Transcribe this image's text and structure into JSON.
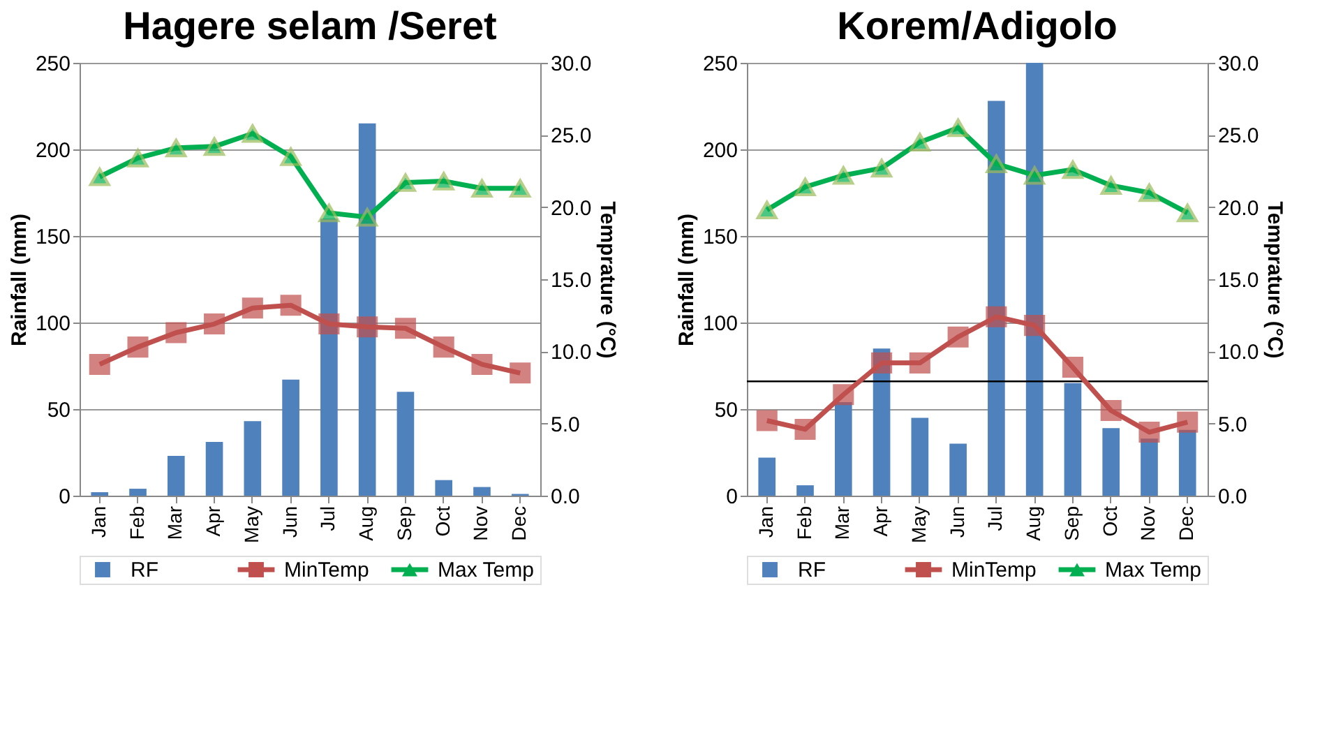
{
  "chart_data": [
    {
      "type": "bar",
      "title": "Hagere selam /Seret",
      "ylabel": "Rainfall (mm)",
      "y2label": "Temprature (°C)",
      "categories": [
        "Jan",
        "Feb",
        "Mar",
        "Apr",
        "May",
        "Jun",
        "Jul",
        "Aug",
        "Sep",
        "Oct",
        "Nov",
        "Dec"
      ],
      "series": [
        {
          "name": "RF",
          "color": "#4f81bd",
          "values": [
            2,
            4,
            23,
            31,
            43,
            67,
            160,
            215,
            60,
            9,
            5,
            1
          ]
        },
        {
          "name": "MinTemp",
          "type": "line",
          "axis": "y2",
          "marker": "square",
          "color": "#c0504d",
          "values": [
            9.1,
            10.3,
            11.3,
            11.9,
            13.0,
            13.2,
            11.9,
            11.7,
            11.6,
            10.3,
            9.1,
            8.5
          ]
        },
        {
          "name": "Max Temp",
          "type": "line",
          "axis": "y2",
          "marker": "triangle",
          "color": "#00b050",
          "values": [
            22.1,
            23.4,
            24.1,
            24.2,
            25.1,
            23.5,
            19.6,
            19.3,
            21.7,
            21.8,
            21.3,
            21.3
          ]
        }
      ],
      "ylim": [
        0,
        250
      ],
      "yticks": [
        0,
        50,
        100,
        150,
        200,
        250
      ],
      "y2lim": [
        0,
        30
      ],
      "y2ticks": [
        {
          "value": 0,
          "label": "0.0"
        },
        {
          "value": 5,
          "label": "5.0"
        },
        {
          "value": 10,
          "label": "10.0"
        },
        {
          "value": 15,
          "label": "15.0"
        },
        {
          "value": 20,
          "label": "20.0"
        },
        {
          "value": 25,
          "label": "25.0"
        },
        {
          "value": 30,
          "label": "30.0"
        }
      ],
      "grid": "y",
      "legend": "bottom"
    },
    {
      "type": "bar",
      "title": "Korem/Adigolo",
      "ylabel": "Rainfall (mm)",
      "y2label": "Temprature (°C)",
      "categories": [
        "Jan",
        "Feb",
        "Mar",
        "Apr",
        "May",
        "Jun",
        "Jul",
        "Aug",
        "Sep",
        "Oct",
        "Nov",
        "Dec"
      ],
      "series": [
        {
          "name": "RF",
          "color": "#4f81bd",
          "values": [
            22,
            6,
            54,
            85,
            45,
            30,
            228,
            250,
            65,
            39,
            33,
            38
          ]
        },
        {
          "name": "MinTemp",
          "type": "line",
          "axis": "y2",
          "marker": "square",
          "color": "#c0504d",
          "values": [
            5.2,
            4.6,
            7.0,
            9.2,
            9.2,
            11.0,
            12.4,
            11.8,
            8.9,
            5.9,
            4.4,
            5.1
          ]
        },
        {
          "name": "Max Temp",
          "type": "line",
          "axis": "y2",
          "marker": "triangle",
          "color": "#00b050",
          "values": [
            19.8,
            21.4,
            22.2,
            22.7,
            24.5,
            25.5,
            23.0,
            22.2,
            22.6,
            21.5,
            21.0,
            19.6
          ]
        }
      ],
      "ylim": [
        0,
        250
      ],
      "yticks": [
        0,
        50,
        100,
        150,
        200,
        250
      ],
      "y2lim": [
        0,
        30
      ],
      "y2ticks": [
        {
          "value": 0,
          "label": "0.0"
        },
        {
          "value": 5,
          "label": "5.0"
        },
        {
          "value": 10,
          "label": "10.0"
        },
        {
          "value": 15,
          "label": "15.0"
        },
        {
          "value": 20,
          "label": "20.0"
        },
        {
          "value": 25,
          "label": "25.0"
        },
        {
          "value": 30,
          "label": "30.0"
        }
      ],
      "ref_lines": [
        {
          "axis": "y",
          "value": 66,
          "label": null,
          "color": "#000000"
        }
      ],
      "grid": "y",
      "legend": "bottom"
    }
  ]
}
